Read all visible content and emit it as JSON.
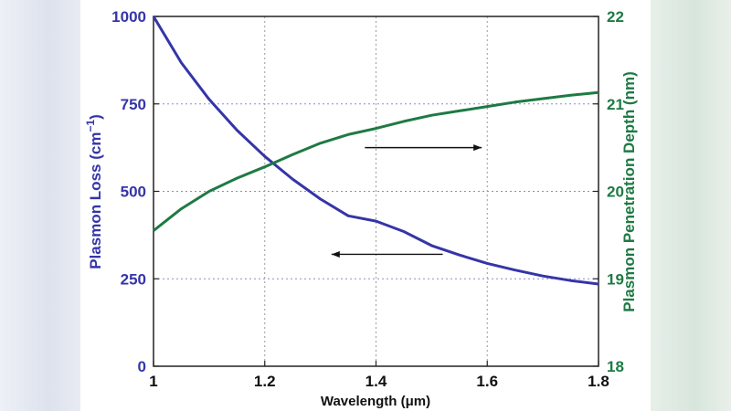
{
  "chart_data": {
    "type": "line",
    "x": [
      1.0,
      1.05,
      1.1,
      1.15,
      1.2,
      1.25,
      1.3,
      1.35,
      1.4,
      1.45,
      1.5,
      1.55,
      1.6,
      1.65,
      1.7,
      1.75,
      1.8
    ],
    "xlim": [
      1,
      1.8
    ],
    "xticks": [
      "1",
      "1.2",
      "1.4",
      "1.6",
      "1.8"
    ],
    "xlabel": "Wavelength (μm)",
    "ylabel_left_prefix": "Plasmon Loss (cm",
    "ylabel_left_sup": "−1",
    "ylabel_left_suffix": ")",
    "ylabel_right": "Plasmon Penetration Depth (nm)",
    "ylim_left": [
      0,
      1000
    ],
    "ylim_right": [
      18,
      22
    ],
    "yticks_left": [
      "0",
      "250",
      "500",
      "750",
      "1000"
    ],
    "yticks_right": [
      "18",
      "19",
      "20",
      "21",
      "22"
    ],
    "grid": true,
    "series": [
      {
        "name": "Plasmon Loss",
        "axis": "left",
        "color": "#3535a8",
        "values": [
          1000,
          868,
          763,
          675,
          600,
          535,
          478,
          430,
          415,
          385,
          345,
          318,
          294,
          275,
          258,
          245,
          235
        ]
      },
      {
        "name": "Plasmon Penetration Depth",
        "axis": "right",
        "color": "#1e7a44",
        "values": [
          19.55,
          19.8,
          20.0,
          20.15,
          20.28,
          20.42,
          20.55,
          20.65,
          20.72,
          20.8,
          20.87,
          20.92,
          20.97,
          21.02,
          21.06,
          21.1,
          21.13
        ]
      }
    ],
    "annotations": [
      {
        "type": "arrow",
        "direction": "right",
        "points_to": "Plasmon Penetration Depth",
        "x_from": 1.38,
        "x_to": 1.59,
        "y_right": 20.5
      },
      {
        "type": "arrow",
        "direction": "left",
        "points_to": "Plasmon Loss",
        "x_from": 1.52,
        "x_to": 1.32,
        "y_left": 320
      }
    ]
  }
}
